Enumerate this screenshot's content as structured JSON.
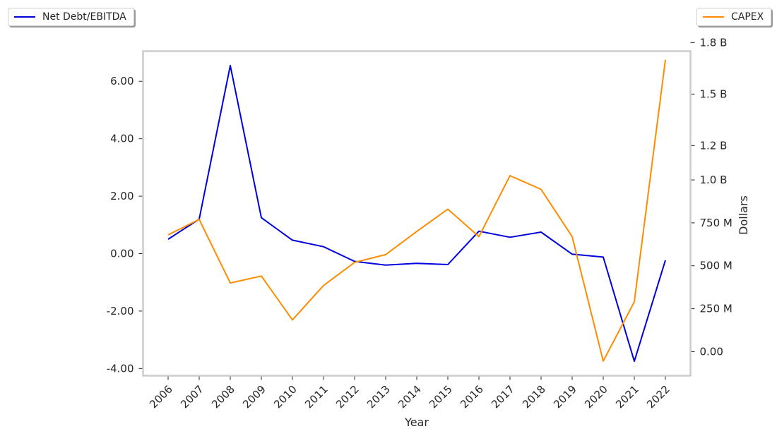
{
  "legend": {
    "left_label": "Net Debt/EBITDA",
    "right_label": "CAPEX"
  },
  "colors": {
    "net_debt": "#0000dd",
    "capex": "#ff8c00",
    "frame": "#cccccc"
  },
  "chart_data": {
    "type": "line",
    "xlabel": "Year",
    "ylabel_left": "",
    "ylabel_right": "Dollars",
    "x": [
      "2006",
      "2007",
      "2008",
      "2009",
      "2010",
      "2011",
      "2012",
      "2013",
      "2014",
      "2015",
      "2016",
      "2017",
      "2018",
      "2019",
      "2020",
      "2021",
      "2022"
    ],
    "y_left_ticks": [
      6,
      4,
      2,
      0,
      -2,
      -4
    ],
    "y_left_tick_labels": [
      "6.00",
      "4.00",
      "2.00",
      "0.00",
      "-2.00",
      "-4.00"
    ],
    "y_left_lim": [
      -4.25,
      7.05
    ],
    "y_right_ticks": [
      1800000000,
      1500000000,
      1200000000,
      1000000000,
      750000000,
      500000000,
      250000000,
      0
    ],
    "y_right_tick_labels": [
      "1.8 B",
      "1.5 B",
      "1.2 B",
      "1.0 B",
      "750 M",
      "500 M",
      "250 M",
      "0.00"
    ],
    "y_right_lim": [
      -140000000,
      1750000000
    ],
    "grid": false,
    "series": [
      {
        "name": "Net Debt/EBITDA",
        "axis": "left",
        "values": [
          0.5,
          1.2,
          6.55,
          1.25,
          0.47,
          0.24,
          -0.27,
          -0.4,
          -0.34,
          -0.38,
          0.78,
          0.57,
          0.75,
          -0.02,
          -0.12,
          -3.75,
          -0.23
        ]
      },
      {
        "name": "CAPEX",
        "axis": "right",
        "values": [
          680000000,
          770000000,
          400000000,
          440000000,
          185000000,
          385000000,
          520000000,
          565000000,
          700000000,
          830000000,
          670000000,
          1025000000,
          945000000,
          670000000,
          -55000000,
          290000000,
          1700000000
        ]
      }
    ]
  }
}
